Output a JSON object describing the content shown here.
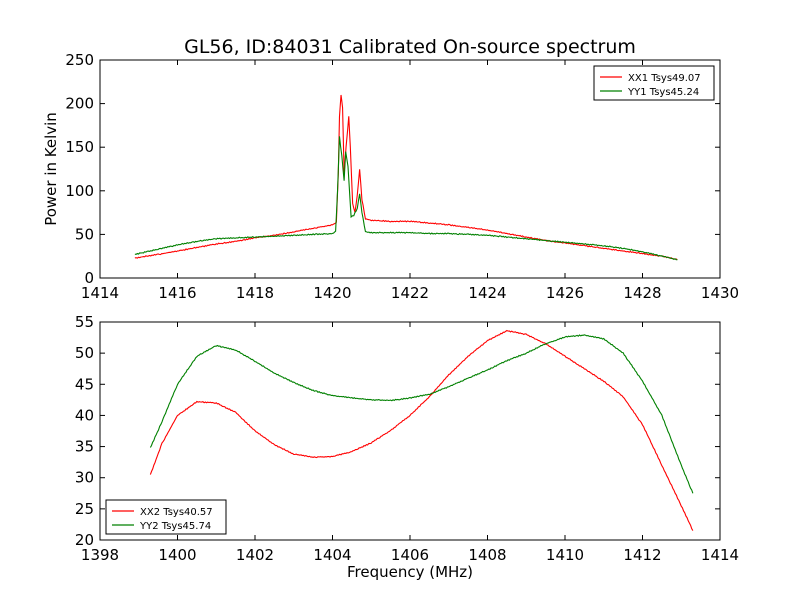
{
  "figure": {
    "title": "GL56, ID:84031 Calibrated On-source spectrum"
  },
  "chart_data": [
    {
      "type": "line",
      "title": "GL56, ID:84031 Calibrated On-source spectrum",
      "xlabel": "",
      "ylabel": "Power in Kelvin",
      "xlim": [
        1414,
        1430
      ],
      "ylim": [
        0,
        250
      ],
      "xticks": [
        1414,
        1416,
        1418,
        1420,
        1422,
        1424,
        1426,
        1428,
        1430
      ],
      "yticks": [
        0,
        50,
        100,
        150,
        200,
        250
      ],
      "grid": false,
      "legend_position": "top-right",
      "series": [
        {
          "name": "XX1 Tsys49.07",
          "color": "#ff0000",
          "points": [
            [
              1414.9,
              23
            ],
            [
              1415.5,
              27
            ],
            [
              1416,
              31
            ],
            [
              1416.5,
              35
            ],
            [
              1417,
              39
            ],
            [
              1417.5,
              42
            ],
            [
              1418,
              46
            ],
            [
              1418.5,
              49
            ],
            [
              1419,
              53
            ],
            [
              1419.5,
              57
            ],
            [
              1420,
              61
            ],
            [
              1420.1,
              64
            ],
            [
              1420.15,
              120
            ],
            [
              1420.18,
              185
            ],
            [
              1420.22,
              210
            ],
            [
              1420.26,
              195
            ],
            [
              1420.3,
              120
            ],
            [
              1420.35,
              150
            ],
            [
              1420.42,
              185
            ],
            [
              1420.46,
              150
            ],
            [
              1420.52,
              85
            ],
            [
              1420.58,
              75
            ],
            [
              1420.64,
              95
            ],
            [
              1420.7,
              125
            ],
            [
              1420.76,
              90
            ],
            [
              1420.85,
              68
            ],
            [
              1421,
              66
            ],
            [
              1421.5,
              65
            ],
            [
              1422,
              65
            ],
            [
              1422.5,
              63
            ],
            [
              1423,
              61
            ],
            [
              1423.5,
              58
            ],
            [
              1424,
              55
            ],
            [
              1424.5,
              51
            ],
            [
              1425,
              47
            ],
            [
              1425.5,
              43
            ],
            [
              1426,
              40
            ],
            [
              1426.5,
              37
            ],
            [
              1427,
              34
            ],
            [
              1427.5,
              31
            ],
            [
              1428,
              28
            ],
            [
              1428.5,
              25
            ],
            [
              1428.9,
              21
            ]
          ]
        },
        {
          "name": "YY1 Tsys45.24",
          "color": "#008000",
          "points": [
            [
              1414.9,
              27
            ],
            [
              1415.5,
              33
            ],
            [
              1416,
              38
            ],
            [
              1416.5,
              42
            ],
            [
              1417,
              45
            ],
            [
              1417.5,
              46
            ],
            [
              1418,
              47
            ],
            [
              1418.5,
              48
            ],
            [
              1419,
              49
            ],
            [
              1419.5,
              50
            ],
            [
              1420,
              51
            ],
            [
              1420.08,
              53
            ],
            [
              1420.13,
              100
            ],
            [
              1420.18,
              162
            ],
            [
              1420.24,
              140
            ],
            [
              1420.3,
              112
            ],
            [
              1420.34,
              145
            ],
            [
              1420.4,
              128
            ],
            [
              1420.48,
              70
            ],
            [
              1420.55,
              72
            ],
            [
              1420.64,
              80
            ],
            [
              1420.7,
              97
            ],
            [
              1420.76,
              75
            ],
            [
              1420.85,
              53
            ],
            [
              1421,
              52
            ],
            [
              1421.5,
              52
            ],
            [
              1422,
              52
            ],
            [
              1422.5,
              51
            ],
            [
              1423,
              51
            ],
            [
              1423.5,
              50
            ],
            [
              1424,
              49
            ],
            [
              1424.5,
              47
            ],
            [
              1425,
              45
            ],
            [
              1425.5,
              43
            ],
            [
              1426,
              41
            ],
            [
              1426.5,
              39
            ],
            [
              1427,
              37
            ],
            [
              1427.5,
              34
            ],
            [
              1428,
              30
            ],
            [
              1428.5,
              25
            ],
            [
              1428.9,
              21
            ]
          ]
        }
      ]
    },
    {
      "type": "line",
      "title": "",
      "xlabel": "Frequency (MHz)",
      "ylabel": "",
      "xlim": [
        1398,
        1414
      ],
      "ylim": [
        20,
        55
      ],
      "xticks": [
        1398,
        1400,
        1402,
        1404,
        1406,
        1408,
        1410,
        1412,
        1414
      ],
      "yticks": [
        20,
        25,
        30,
        35,
        40,
        45,
        50,
        55
      ],
      "grid": false,
      "legend_position": "bottom-left",
      "series": [
        {
          "name": "XX2 Tsys40.57",
          "color": "#ff0000",
          "points": [
            [
              1399.3,
              30.5
            ],
            [
              1399.6,
              35.5
            ],
            [
              1400,
              40
            ],
            [
              1400.5,
              42.2
            ],
            [
              1401,
              42
            ],
            [
              1401.5,
              40.5
            ],
            [
              1402,
              37.5
            ],
            [
              1402.5,
              35.3
            ],
            [
              1403,
              33.8
            ],
            [
              1403.5,
              33.3
            ],
            [
              1404,
              33.4
            ],
            [
              1404.5,
              34.2
            ],
            [
              1405,
              35.6
            ],
            [
              1405.5,
              37.6
            ],
            [
              1406,
              40
            ],
            [
              1406.5,
              43
            ],
            [
              1407,
              46.5
            ],
            [
              1407.5,
              49.5
            ],
            [
              1408,
              52
            ],
            [
              1408.5,
              53.6
            ],
            [
              1409,
              53
            ],
            [
              1409.5,
              51.5
            ],
            [
              1410,
              49.5
            ],
            [
              1410.5,
              47.5
            ],
            [
              1411,
              45.5
            ],
            [
              1411.5,
              43
            ],
            [
              1412,
              38.5
            ],
            [
              1412.5,
              32
            ],
            [
              1413,
              25.5
            ],
            [
              1413.3,
              21.5
            ]
          ]
        },
        {
          "name": "YY2 Tsys45.74",
          "color": "#008000",
          "points": [
            [
              1399.3,
              34.8
            ],
            [
              1399.6,
              39
            ],
            [
              1400,
              45
            ],
            [
              1400.5,
              49.5
            ],
            [
              1401,
              51.2
            ],
            [
              1401.5,
              50.5
            ],
            [
              1402,
              48.7
            ],
            [
              1402.5,
              46.8
            ],
            [
              1403,
              45.3
            ],
            [
              1403.5,
              44
            ],
            [
              1404,
              43.2
            ],
            [
              1404.5,
              42.8
            ],
            [
              1405,
              42.5
            ],
            [
              1405.5,
              42.4
            ],
            [
              1406,
              42.8
            ],
            [
              1406.5,
              43.4
            ],
            [
              1407,
              44.6
            ],
            [
              1407.5,
              46
            ],
            [
              1408,
              47.3
            ],
            [
              1408.5,
              48.8
            ],
            [
              1409,
              50
            ],
            [
              1409.5,
              51.5
            ],
            [
              1410,
              52.6
            ],
            [
              1410.5,
              52.9
            ],
            [
              1411,
              52.3
            ],
            [
              1411.5,
              50
            ],
            [
              1412,
              45.5
            ],
            [
              1412.5,
              40
            ],
            [
              1413,
              32
            ],
            [
              1413.3,
              27.5
            ]
          ]
        }
      ]
    }
  ]
}
